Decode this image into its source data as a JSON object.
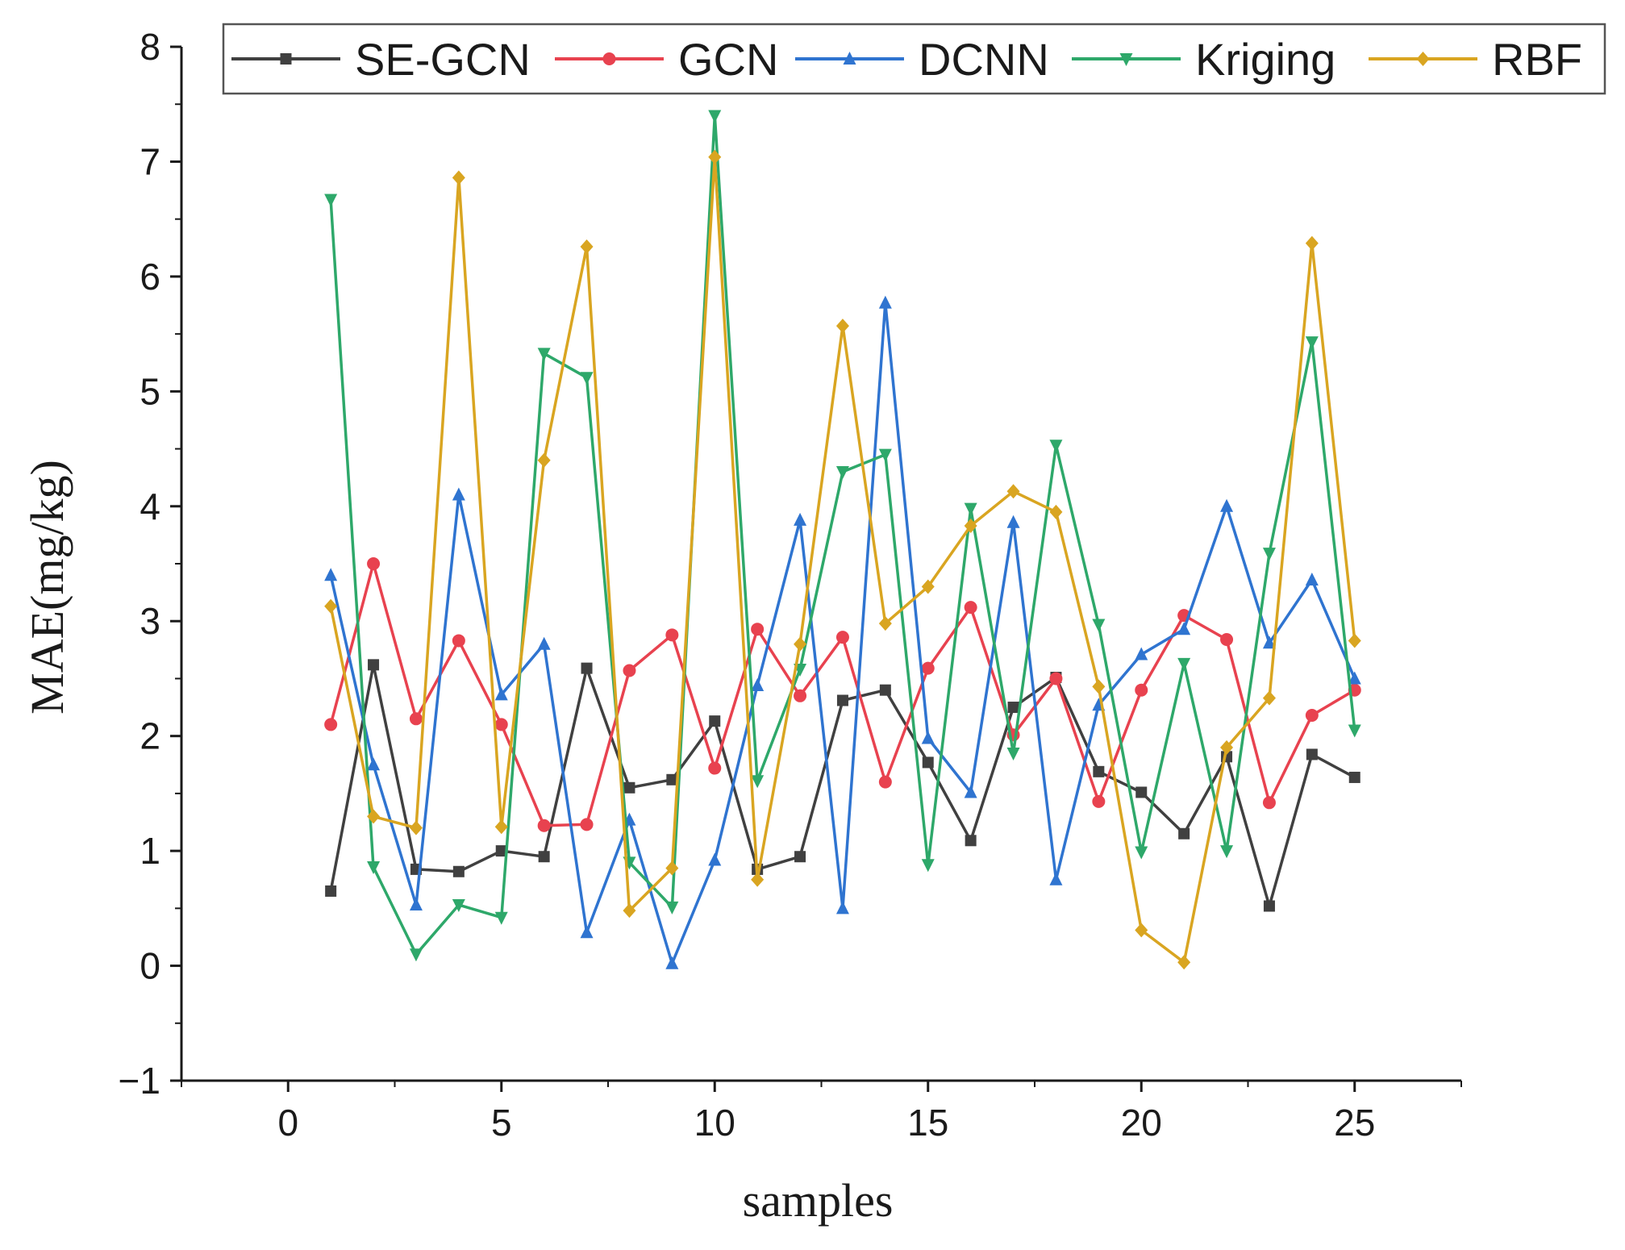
{
  "chart_data": {
    "type": "line",
    "title": "",
    "xlabel": "samples",
    "ylabel": "MAE(mg/kg)",
    "xlim": [
      -2.5,
      27.5
    ],
    "ylim": [
      -1,
      8
    ],
    "x_ticks": [
      0,
      5,
      10,
      15,
      20,
      25
    ],
    "y_ticks": [
      -1,
      0,
      1,
      2,
      3,
      4,
      5,
      6,
      7,
      8
    ],
    "grid": false,
    "legend": "top",
    "x": [
      1,
      2,
      3,
      4,
      5,
      6,
      7,
      8,
      9,
      10,
      11,
      12,
      13,
      14,
      15,
      16,
      17,
      18,
      19,
      20,
      21,
      22,
      23,
      24,
      25
    ],
    "series": [
      {
        "name": "SE-GCN",
        "color": "#404040",
        "marker": "square",
        "values": [
          0.65,
          2.62,
          0.84,
          0.82,
          1.0,
          0.95,
          2.59,
          1.55,
          1.62,
          2.13,
          0.84,
          0.95,
          2.31,
          2.4,
          1.77,
          1.09,
          2.25,
          2.51,
          1.69,
          1.51,
          1.15,
          1.82,
          0.52,
          1.84,
          1.64
        ]
      },
      {
        "name": "GCN",
        "color": "#e8424f",
        "marker": "circle",
        "values": [
          2.1,
          3.5,
          2.15,
          2.83,
          2.1,
          1.22,
          1.23,
          2.57,
          2.88,
          1.72,
          2.93,
          2.35,
          2.86,
          1.6,
          2.59,
          3.12,
          2.01,
          2.5,
          1.43,
          2.4,
          3.05,
          2.84,
          1.42,
          2.18,
          2.4
        ]
      },
      {
        "name": "DCNN",
        "color": "#2f74d0",
        "marker": "triangle-up",
        "values": [
          3.4,
          1.75,
          0.53,
          4.1,
          2.36,
          2.8,
          0.29,
          1.27,
          0.02,
          0.92,
          2.44,
          3.88,
          0.5,
          5.77,
          1.98,
          1.51,
          3.86,
          0.75,
          2.27,
          2.71,
          2.93,
          4.0,
          2.81,
          3.36,
          2.5
        ]
      },
      {
        "name": "Kriging",
        "color": "#2ea86a",
        "marker": "triangle-down",
        "values": [
          6.67,
          0.86,
          0.1,
          0.53,
          0.42,
          5.33,
          5.12,
          0.9,
          0.51,
          7.4,
          1.61,
          2.58,
          4.3,
          4.45,
          0.88,
          3.98,
          1.85,
          4.53,
          2.97,
          0.99,
          2.63,
          1.0,
          3.59,
          5.43,
          2.05
        ]
      },
      {
        "name": "RBF",
        "color": "#d9a521",
        "marker": "diamond",
        "values": [
          3.13,
          1.3,
          1.2,
          6.86,
          1.21,
          4.4,
          6.26,
          0.48,
          0.85,
          7.04,
          0.75,
          2.8,
          5.57,
          2.98,
          3.3,
          3.83,
          4.13,
          3.95,
          2.43,
          0.31,
          0.03,
          1.9,
          2.33,
          6.29,
          2.83
        ]
      }
    ]
  }
}
